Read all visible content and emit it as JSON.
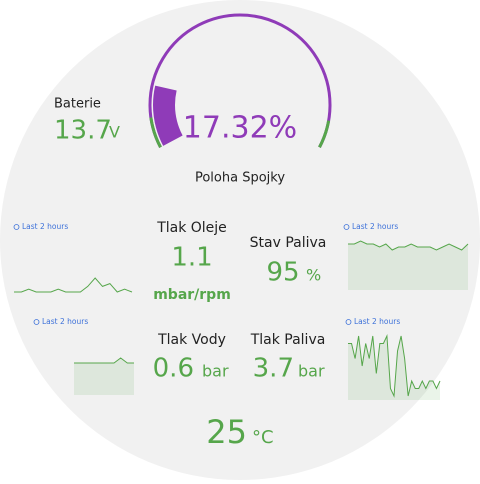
{
  "dashboard": {
    "battery": {
      "label": "Baterie",
      "value": 13.7,
      "unit": "V"
    },
    "gauge": {
      "label": "Poloha Spojky",
      "value": 17.32,
      "value_label": "17.32%",
      "min": 0,
      "max": 100,
      "color": "#8f3bb8",
      "threshold_color": "#56a64b"
    },
    "oil_pressure": {
      "label": "Tlak Oleje",
      "value": 1.1,
      "unit": "mbar/rpm"
    },
    "fuel_level": {
      "label": "Stav Paliva",
      "value": 95,
      "unit": "%"
    },
    "water_pressure": {
      "label": "Tlak Vody",
      "value": 0.6,
      "unit": "bar"
    },
    "fuel_pressure": {
      "label": "Tlak Paliva",
      "value": 3.7,
      "unit": "bar"
    },
    "temperature": {
      "value": 25,
      "unit": "°C"
    },
    "sparklines": [
      {
        "label": "Last 2 hours",
        "values": [
          3,
          3,
          3.1,
          3,
          3,
          3,
          3.1,
          3,
          3,
          3,
          3.2,
          3.5,
          3.2,
          3.3,
          3,
          3.1,
          3
        ],
        "fill": false
      },
      {
        "label": "Last 2 hours",
        "values": [
          0.5,
          0.5,
          0.6,
          0.5,
          0.5,
          0.4,
          0.5,
          0.3,
          0.4,
          0.4,
          0.5,
          0.4,
          0.4,
          0.4,
          0.3,
          0.4,
          0.5,
          0.4,
          0.3,
          0.5
        ],
        "fill": true
      },
      {
        "label": "Last 2 hours",
        "values": [
          1,
          1,
          1,
          1,
          1,
          1,
          1,
          1.1,
          1,
          1
        ],
        "fill": true
      },
      {
        "label": "Last 2 hours",
        "values": [
          8,
          8,
          6,
          9,
          5,
          8,
          6,
          9,
          4,
          8,
          8,
          9,
          2,
          1,
          7,
          9,
          6,
          1,
          3,
          2,
          2,
          3,
          2,
          3,
          3,
          2,
          3
        ],
        "fill": true
      }
    ],
    "value_color": "#56a64b"
  }
}
